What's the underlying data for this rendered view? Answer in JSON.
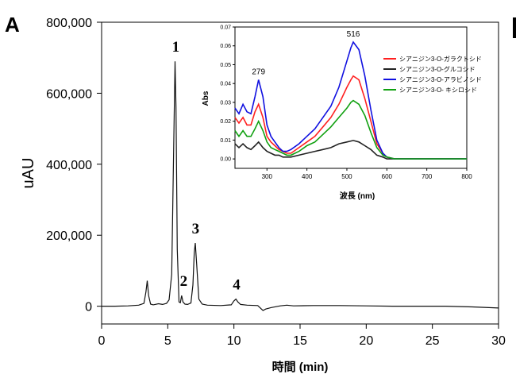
{
  "panel_letter": "A",
  "chart_data": [
    {
      "type": "line",
      "xlabel": "時間 (min)",
      "ylabel": "uAU",
      "xlim": [
        0,
        30
      ],
      "ylim": [
        -50000,
        800000
      ],
      "xticks": [
        0,
        5,
        10,
        15,
        20,
        25,
        30
      ],
      "xtick_labels": [
        "0",
        "5",
        "10",
        "15",
        "20",
        "25",
        "30"
      ],
      "yticks": [
        0,
        200000,
        400000,
        600000,
        800000
      ],
      "ytick_labels": [
        "0",
        "200,000",
        "400,000",
        "600,000",
        "800,000"
      ],
      "series": [
        {
          "x": [
            0,
            1,
            2,
            2.8,
            3.2,
            3.35,
            3.45,
            3.55,
            3.7,
            3.9,
            4.3,
            4.6,
            4.9,
            5.1,
            5.3,
            5.45,
            5.55,
            5.62,
            5.72,
            5.85,
            5.95,
            6.05,
            6.15,
            6.3,
            6.5,
            6.75,
            6.9,
            7.0,
            7.08,
            7.18,
            7.35,
            7.6,
            8.0,
            9.0,
            9.8,
            10.0,
            10.15,
            10.3,
            10.5,
            11.0,
            11.8,
            12.0,
            12.2,
            12.4,
            12.8,
            13.5,
            14.0,
            14.5,
            16,
            18,
            20,
            22,
            24,
            26,
            28,
            30
          ],
          "y": [
            0,
            0,
            1000,
            3000,
            8000,
            40000,
            72000,
            30000,
            6000,
            4000,
            7000,
            5000,
            8000,
            18000,
            90000,
            450000,
            690000,
            560000,
            160000,
            12000,
            10000,
            30000,
            12000,
            6000,
            5000,
            9000,
            60000,
            150000,
            178000,
            120000,
            20000,
            6000,
            3000,
            2000,
            4000,
            15000,
            20000,
            12000,
            5000,
            3000,
            2000,
            -5000,
            -12000,
            -8000,
            -4000,
            1000,
            3000,
            1000,
            2000,
            2000,
            1000,
            0,
            0,
            0,
            -2000,
            -5000
          ]
        }
      ],
      "annotations": [
        {
          "text": "1",
          "x": 5.6,
          "y": 690000
        },
        {
          "text": "2",
          "x": 6.2,
          "y": 30000
        },
        {
          "text": "3",
          "x": 7.1,
          "y": 178000
        },
        {
          "text": "4",
          "x": 10.2,
          "y": 20000
        }
      ]
    },
    {
      "type": "line",
      "xlabel": "波長 (nm)",
      "ylabel": "Abs",
      "xlim": [
        220,
        800
      ],
      "ylim": [
        -0.005,
        0.07
      ],
      "xticks": [
        300,
        400,
        500,
        600,
        700,
        800
      ],
      "xtick_labels": [
        "300",
        "400",
        "500",
        "600",
        "700",
        "800"
      ],
      "yticks": [
        0.0,
        0.01,
        0.02,
        0.03,
        0.04,
        0.05,
        0.06,
        0.07
      ],
      "ytick_labels": [
        "0.00",
        "0.01",
        "0.02",
        "0.03",
        "0.04",
        "0.05",
        "0.06",
        "0.07"
      ],
      "legend_position": "right",
      "annotations": [
        {
          "text": "279",
          "x": 279,
          "y": 0.042
        },
        {
          "text": "516",
          "x": 516,
          "y": 0.062
        }
      ],
      "series": [
        {
          "name": "シアニジン3-O-ガラクトシド",
          "color": "#ff2020",
          "x": [
            220,
            230,
            240,
            250,
            260,
            270,
            279,
            290,
            300,
            310,
            320,
            330,
            340,
            350,
            360,
            380,
            400,
            420,
            440,
            460,
            480,
            500,
            510,
            516,
            530,
            545,
            560,
            575,
            590,
            600,
            620,
            650,
            700,
            800
          ],
          "y": [
            0.022,
            0.019,
            0.022,
            0.018,
            0.018,
            0.025,
            0.029,
            0.022,
            0.012,
            0.009,
            0.007,
            0.005,
            0.004,
            0.003,
            0.003,
            0.006,
            0.009,
            0.012,
            0.017,
            0.022,
            0.029,
            0.038,
            0.042,
            0.044,
            0.042,
            0.032,
            0.02,
            0.008,
            0.003,
            0.001,
            0.0,
            0.0,
            0.0,
            0.0
          ]
        },
        {
          "name": "シアニジン3-O-グルコシド",
          "color": "#222222",
          "x": [
            220,
            230,
            240,
            250,
            260,
            270,
            279,
            290,
            300,
            310,
            320,
            330,
            340,
            360,
            380,
            400,
            420,
            440,
            460,
            480,
            500,
            510,
            516,
            530,
            545,
            560,
            575,
            590,
            600,
            650,
            700,
            800
          ],
          "y": [
            0.008,
            0.006,
            0.008,
            0.006,
            0.005,
            0.007,
            0.009,
            0.006,
            0.004,
            0.003,
            0.002,
            0.002,
            0.001,
            0.001,
            0.002,
            0.003,
            0.004,
            0.005,
            0.006,
            0.008,
            0.009,
            0.0095,
            0.0098,
            0.009,
            0.007,
            0.005,
            0.002,
            0.001,
            0.0,
            0.0,
            0.0,
            0.0
          ]
        },
        {
          "name": "シアニジン3-O-アラビノシド",
          "color": "#1010e0",
          "x": [
            220,
            230,
            240,
            250,
            260,
            270,
            279,
            290,
            300,
            310,
            320,
            330,
            340,
            350,
            360,
            380,
            400,
            420,
            440,
            460,
            480,
            500,
            510,
            516,
            530,
            545,
            560,
            575,
            590,
            600,
            620,
            650,
            700,
            800
          ],
          "y": [
            0.027,
            0.024,
            0.029,
            0.025,
            0.024,
            0.033,
            0.042,
            0.033,
            0.018,
            0.012,
            0.009,
            0.006,
            0.004,
            0.004,
            0.005,
            0.008,
            0.012,
            0.016,
            0.022,
            0.028,
            0.038,
            0.052,
            0.059,
            0.062,
            0.058,
            0.044,
            0.026,
            0.01,
            0.003,
            0.001,
            0.0,
            0.0,
            0.0,
            0.0
          ]
        },
        {
          "name": "シアニジン3-O- キシロシド",
          "color": "#10a010",
          "x": [
            220,
            230,
            240,
            250,
            260,
            270,
            279,
            290,
            300,
            310,
            320,
            330,
            340,
            350,
            360,
            380,
            400,
            420,
            440,
            460,
            480,
            500,
            510,
            516,
            530,
            545,
            560,
            575,
            590,
            600,
            620,
            650,
            700,
            800
          ],
          "y": [
            0.015,
            0.012,
            0.015,
            0.012,
            0.012,
            0.016,
            0.02,
            0.015,
            0.009,
            0.006,
            0.005,
            0.004,
            0.003,
            0.002,
            0.002,
            0.004,
            0.007,
            0.009,
            0.013,
            0.017,
            0.022,
            0.027,
            0.03,
            0.031,
            0.029,
            0.023,
            0.014,
            0.006,
            0.002,
            0.001,
            0.0,
            0.0,
            0.0,
            0.0
          ]
        }
      ]
    }
  ]
}
